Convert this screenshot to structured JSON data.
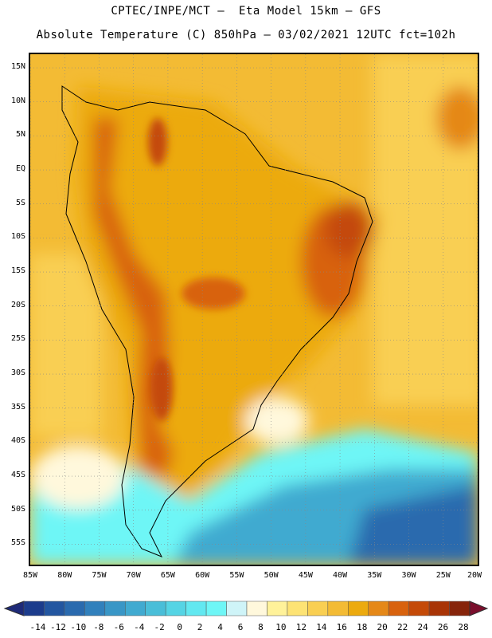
{
  "header": {
    "title_line1": "CPTEC/INPE/MCT –  Eta Model 15km – GFS",
    "title_line2": "Absolute Temperature (C) 850hPa – 03/02/2021 12UTC fct=102h"
  },
  "map": {
    "region": "South America",
    "variable": "Absolute Temperature (C) 850hPa",
    "lon_range": [
      -85,
      -20
    ],
    "lat_range": [
      -58,
      17
    ],
    "grid": true,
    "lat_labels": [
      "15N",
      "10N",
      "5N",
      "EQ",
      "5S",
      "10S",
      "15S",
      "20S",
      "25S",
      "30S",
      "35S",
      "40S",
      "45S",
      "50S",
      "55S"
    ],
    "lat_values": [
      15,
      10,
      5,
      0,
      -5,
      -10,
      -15,
      -20,
      -25,
      -30,
      -35,
      -40,
      -45,
      -50,
      -55
    ],
    "lon_labels": [
      "85W",
      "80W",
      "75W",
      "70W",
      "65W",
      "60W",
      "55W",
      "50W",
      "45W",
      "40W",
      "35W",
      "30W",
      "25W",
      "20W"
    ],
    "lon_values": [
      -85,
      -80,
      -75,
      -70,
      -65,
      -60,
      -55,
      -50,
      -45,
      -40,
      -35,
      -30,
      -25,
      -20
    ]
  },
  "colorbar": {
    "labels": [
      "-14",
      "-12",
      "-10",
      "-8",
      "-6",
      "-4",
      "-2",
      "0",
      "2",
      "4",
      "6",
      "8",
      "10",
      "12",
      "14",
      "16",
      "18",
      "20",
      "22",
      "24",
      "26",
      "28"
    ],
    "colors": [
      "#1c3c8c",
      "#2356a0",
      "#2a6aae",
      "#3180bc",
      "#3996c6",
      "#41aad0",
      "#4abed8",
      "#55d4e4",
      "#62e8f0",
      "#6ef6f6",
      "#cff4f8",
      "#fff8dc",
      "#fff29a",
      "#fde374",
      "#f9cf52",
      "#f3bb34",
      "#ecaa0e",
      "#e58818",
      "#d8620e",
      "#c44a08",
      "#a83406",
      "#86240a"
    ],
    "left_arrow_color": "#1e2a78",
    "right_arrow_color": "#7a0e2c"
  }
}
